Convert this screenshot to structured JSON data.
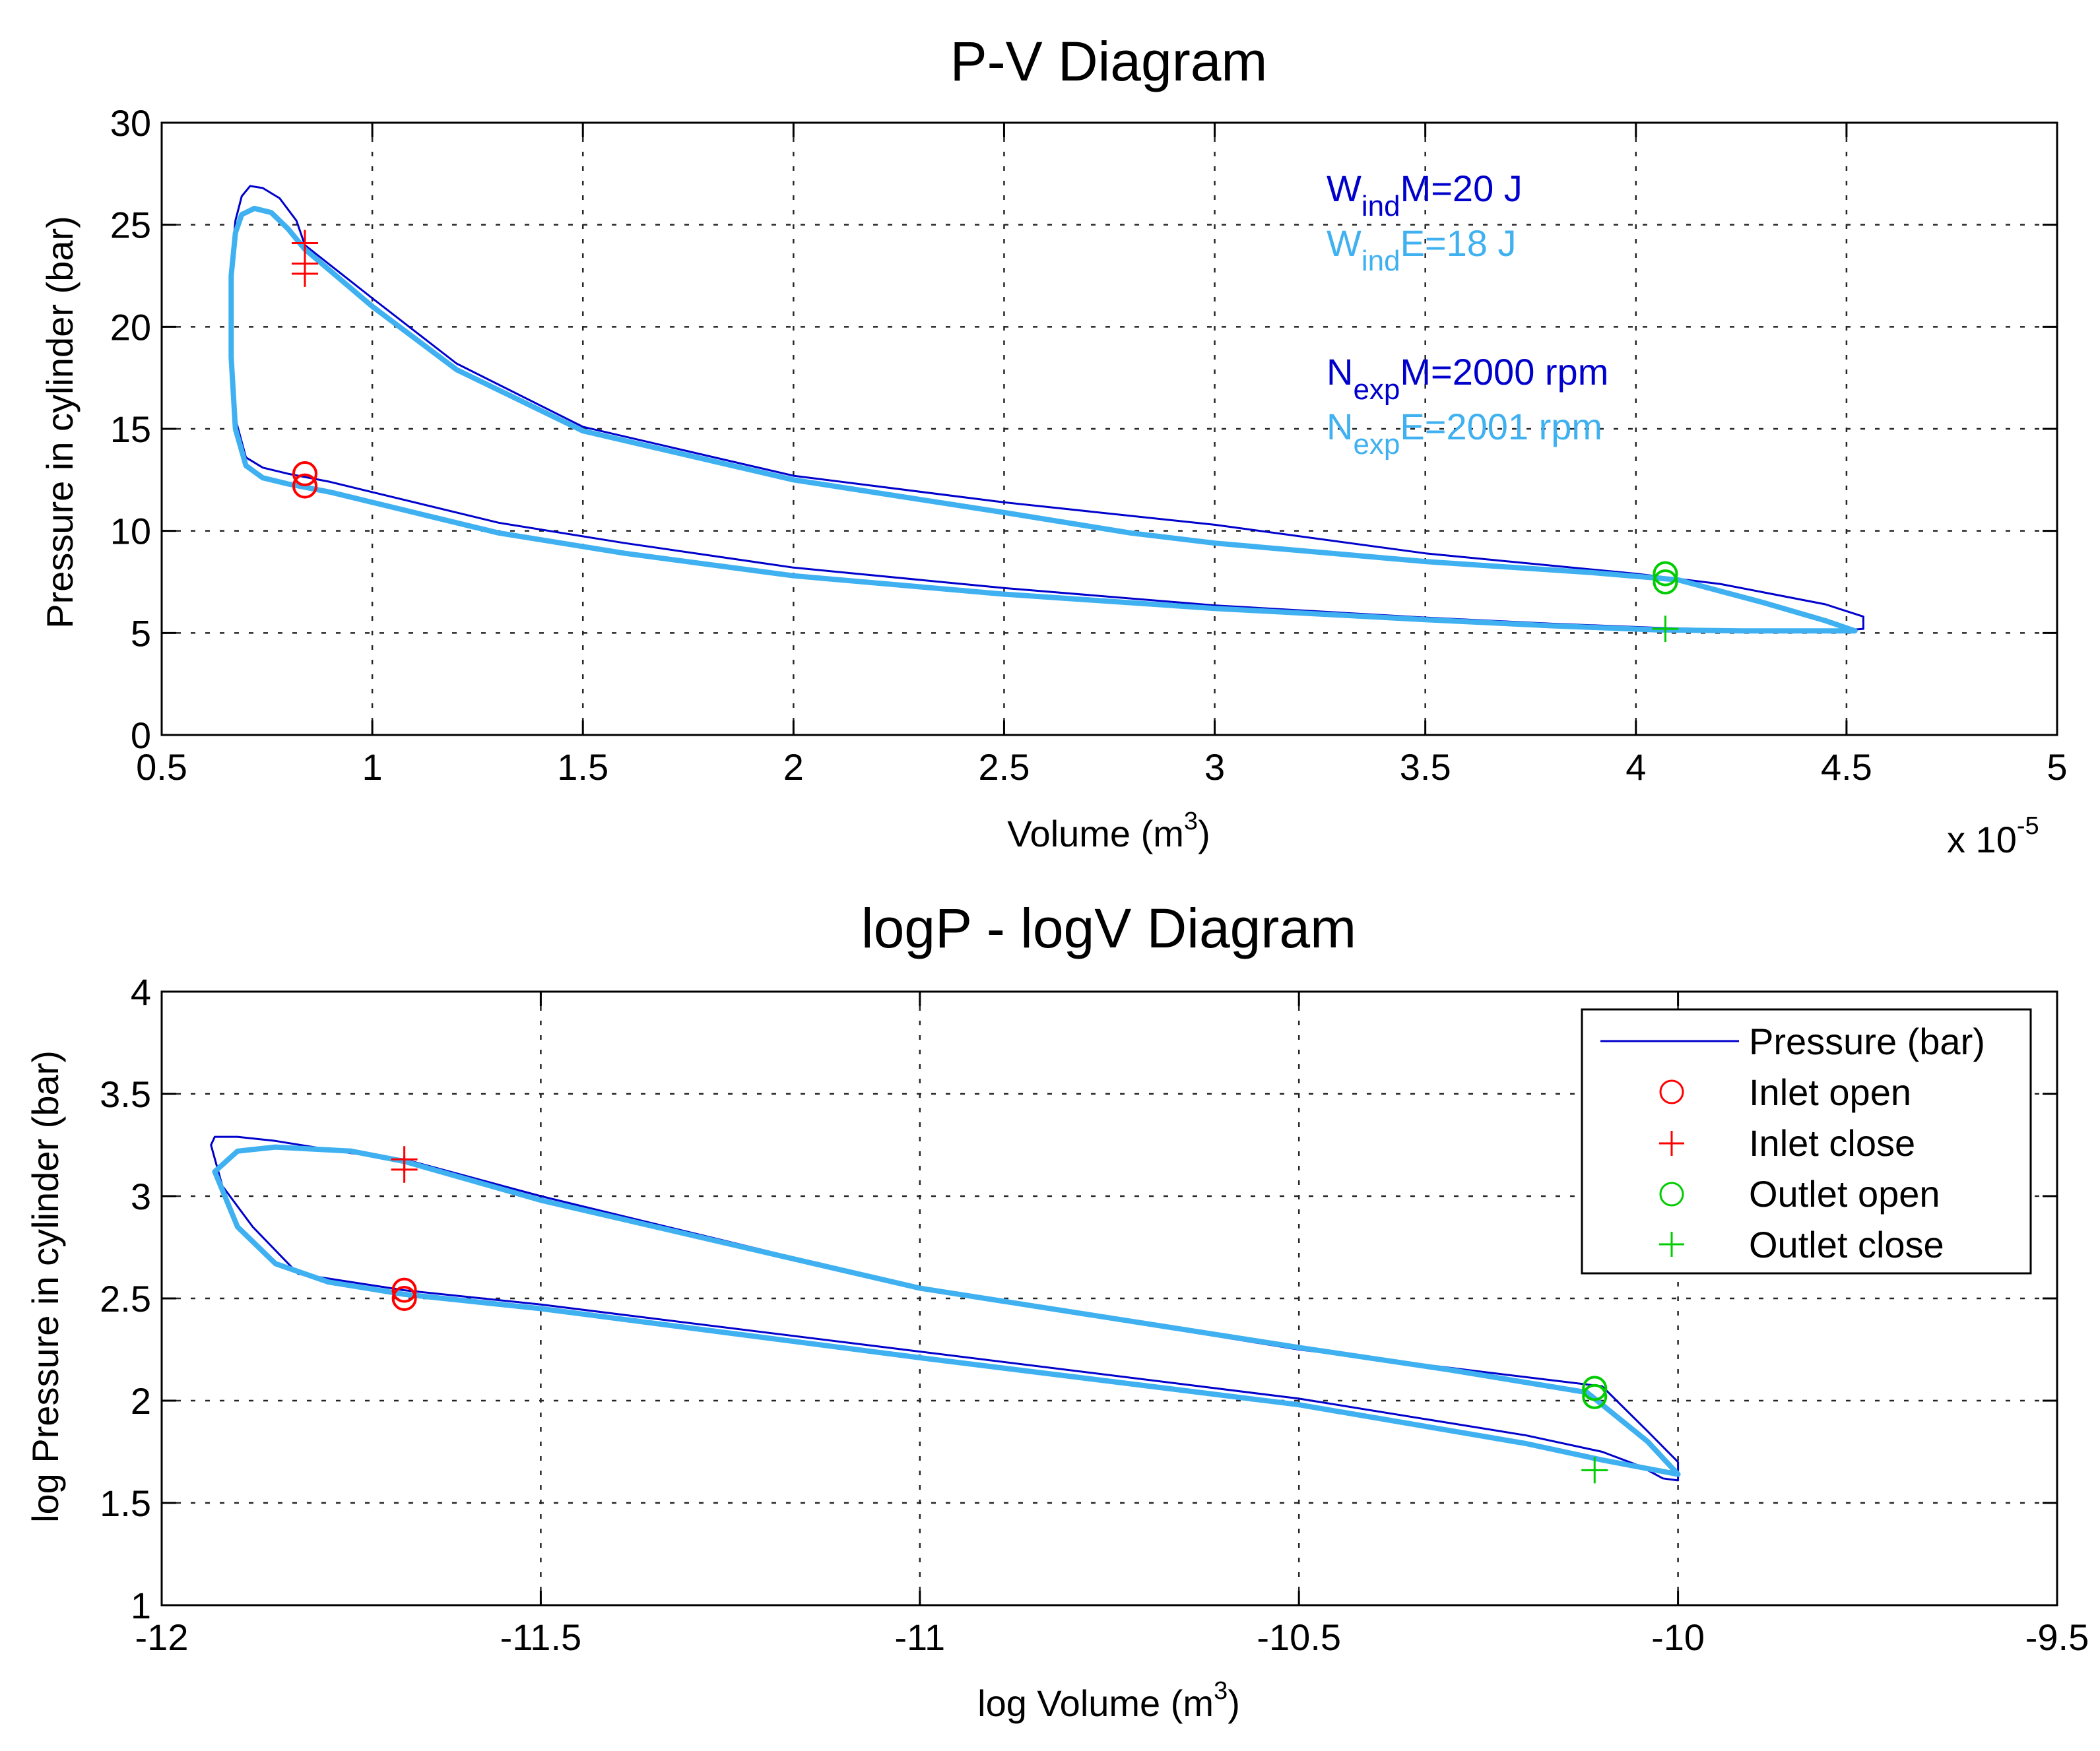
{
  "chart_data": [
    {
      "type": "line",
      "title": "P-V Diagram",
      "xlabel": "Volume (m",
      "xlabel_sup": "3",
      "xlabel_end": ")",
      "ylabel": "Pressure in cylinder (bar)",
      "xlim": [
        0.5,
        5
      ],
      "ylim": [
        0,
        30
      ],
      "x_exponent": "x 10",
      "x_exponent_sup": "-5",
      "x_ticks": [
        "0.5",
        "1",
        "1.5",
        "2",
        "2.5",
        "3",
        "3.5",
        "4",
        "4.5",
        "5"
      ],
      "y_ticks": [
        "0",
        "5",
        "10",
        "15",
        "20",
        "25",
        "30"
      ],
      "grid": true,
      "annotations": [
        {
          "base": "W",
          "sub": "ind",
          "rest": "M=20 J",
          "color": "#0000cc"
        },
        {
          "base": "W",
          "sub": "ind",
          "rest": "E=18 J",
          "color": "#3fb0f0"
        },
        {
          "base": "N",
          "sub": "exp",
          "rest": "M=2000 rpm",
          "color": "#0000cc"
        },
        {
          "base": "N",
          "sub": "exp",
          "rest": "E=2001 rpm",
          "color": "#3fb0f0"
        }
      ],
      "series": [
        {
          "color": "#0000cc",
          "x": [
            0.84,
            0.82,
            0.78,
            0.74,
            0.71,
            0.69,
            0.675,
            0.665,
            0.665,
            0.675,
            0.7,
            0.74,
            0.8,
            0.9,
            1.0,
            1.3,
            1.6,
            2.0,
            2.5,
            3.0,
            3.5,
            3.8,
            4.05,
            4.3,
            4.48,
            4.54,
            4.54,
            4.45,
            4.2,
            4.0,
            3.7,
            3.5,
            3.0,
            2.5,
            2.0,
            1.5,
            1.2,
            1.0,
            0.84
          ],
          "y": [
            24.0,
            25.2,
            26.3,
            26.8,
            26.9,
            26.4,
            25.2,
            23.0,
            19.0,
            15.5,
            13.6,
            13.1,
            12.8,
            12.4,
            11.9,
            10.4,
            9.4,
            8.2,
            7.2,
            6.35,
            5.75,
            5.45,
            5.25,
            5.12,
            5.1,
            5.2,
            5.8,
            6.4,
            7.4,
            7.9,
            8.5,
            8.9,
            10.3,
            11.4,
            12.7,
            15.1,
            18.2,
            21.4,
            24.0
          ]
        },
        {
          "color": "#3fb0f0",
          "x": [
            0.84,
            0.8,
            0.76,
            0.72,
            0.69,
            0.675,
            0.665,
            0.665,
            0.675,
            0.7,
            0.74,
            0.8,
            0.9,
            1.0,
            1.3,
            1.6,
            2.0,
            2.5,
            3.0,
            3.5,
            3.8,
            4.05,
            4.25,
            4.4,
            4.52,
            4.45,
            4.3,
            4.1,
            3.9,
            3.5,
            3.0,
            2.8,
            2.5,
            2.0,
            1.5,
            1.2,
            1.0,
            0.84
          ],
          "y": [
            23.8,
            24.8,
            25.6,
            25.8,
            25.5,
            24.6,
            22.5,
            18.5,
            15.0,
            13.2,
            12.6,
            12.3,
            11.9,
            11.4,
            9.9,
            8.9,
            7.8,
            6.9,
            6.2,
            5.65,
            5.35,
            5.15,
            5.1,
            5.1,
            5.1,
            5.6,
            6.5,
            7.6,
            7.95,
            8.5,
            9.4,
            9.9,
            10.9,
            12.5,
            14.9,
            17.9,
            21.0,
            23.8
          ]
        }
      ],
      "markers": {
        "inlet_open": [
          {
            "x": 0.84,
            "y": 12.8
          },
          {
            "x": 0.84,
            "y": 12.2
          }
        ],
        "inlet_close": [
          {
            "x": 0.84,
            "y": 24.1
          },
          {
            "x": 0.84,
            "y": 23.1
          },
          {
            "x": 0.84,
            "y": 22.6
          }
        ],
        "outlet_open": [
          {
            "x": 4.07,
            "y": 7.9
          },
          {
            "x": 4.07,
            "y": 7.5
          }
        ],
        "outlet_close": [
          {
            "x": 4.07,
            "y": 5.2
          }
        ]
      }
    },
    {
      "type": "line",
      "title": "logP - logV Diagram",
      "xlabel": "log Volume (m",
      "xlabel_sup": "3",
      "xlabel_end": ")",
      "ylabel": "log Pressure in cylinder (bar)",
      "xlim": [
        -12,
        -9.5
      ],
      "ylim": [
        1,
        4
      ],
      "x_ticks": [
        "-12",
        "-11.5",
        "-11",
        "-10.5",
        "-10",
        "-9.5"
      ],
      "y_ticks": [
        "1",
        "1.5",
        "2",
        "2.5",
        "3",
        "3.5",
        "4"
      ],
      "grid": true,
      "legend": {
        "position": "top-right",
        "entries": [
          {
            "label": "Pressure (bar)",
            "symbol": "line",
            "color": "#0000cc"
          },
          {
            "label": "Inlet open",
            "symbol": "circle",
            "color": "#ff0000"
          },
          {
            "label": "Inlet close",
            "symbol": "plus",
            "color": "#ff0000"
          },
          {
            "label": "Outlet open",
            "symbol": "circle",
            "color": "#00cc00"
          },
          {
            "label": "Outlet close",
            "symbol": "plus",
            "color": "#00cc00"
          }
        ]
      },
      "series": [
        {
          "color": "#0000cc",
          "x": [
            -11.68,
            -11.75,
            -11.85,
            -11.9,
            -11.93,
            -11.935,
            -11.92,
            -11.88,
            -11.82,
            -11.68,
            -11.5,
            -11.0,
            -10.5,
            -10.2,
            -10.1,
            -10.05,
            -10.02,
            -10.0,
            -10.0,
            -10.04,
            -10.1,
            -10.3,
            -10.5,
            -11.0,
            -11.5,
            -11.68
          ],
          "y": [
            3.18,
            3.21,
            3.27,
            3.29,
            3.29,
            3.25,
            3.05,
            2.85,
            2.62,
            2.54,
            2.47,
            2.24,
            2.01,
            1.83,
            1.75,
            1.68,
            1.62,
            1.61,
            1.7,
            1.85,
            2.07,
            2.16,
            2.25,
            2.55,
            3.0,
            3.18
          ]
        },
        {
          "color": "#3fb0f0",
          "x": [
            -11.68,
            -11.75,
            -11.85,
            -11.9,
            -11.93,
            -11.9,
            -11.85,
            -11.78,
            -11.68,
            -11.5,
            -11.0,
            -10.5,
            -10.2,
            -10.1,
            -10.0,
            -10.04,
            -10.08,
            -10.12,
            -10.3,
            -10.5,
            -11.0,
            -11.5,
            -11.68
          ],
          "y": [
            3.17,
            3.22,
            3.24,
            3.22,
            3.12,
            2.85,
            2.67,
            2.58,
            2.52,
            2.45,
            2.21,
            1.98,
            1.79,
            1.71,
            1.64,
            1.8,
            1.92,
            2.04,
            2.15,
            2.26,
            2.55,
            2.98,
            3.17
          ]
        }
      ],
      "markers": {
        "inlet_open": [
          {
            "x": -11.68,
            "y": 2.54
          },
          {
            "x": -11.68,
            "y": 2.5
          }
        ],
        "inlet_close": [
          {
            "x": -11.68,
            "y": 3.18
          },
          {
            "x": -11.68,
            "y": 3.13
          }
        ],
        "outlet_open": [
          {
            "x": -10.11,
            "y": 2.06
          },
          {
            "x": -10.11,
            "y": 2.02
          }
        ],
        "outlet_close": [
          {
            "x": -10.11,
            "y": 1.66
          }
        ]
      }
    }
  ]
}
